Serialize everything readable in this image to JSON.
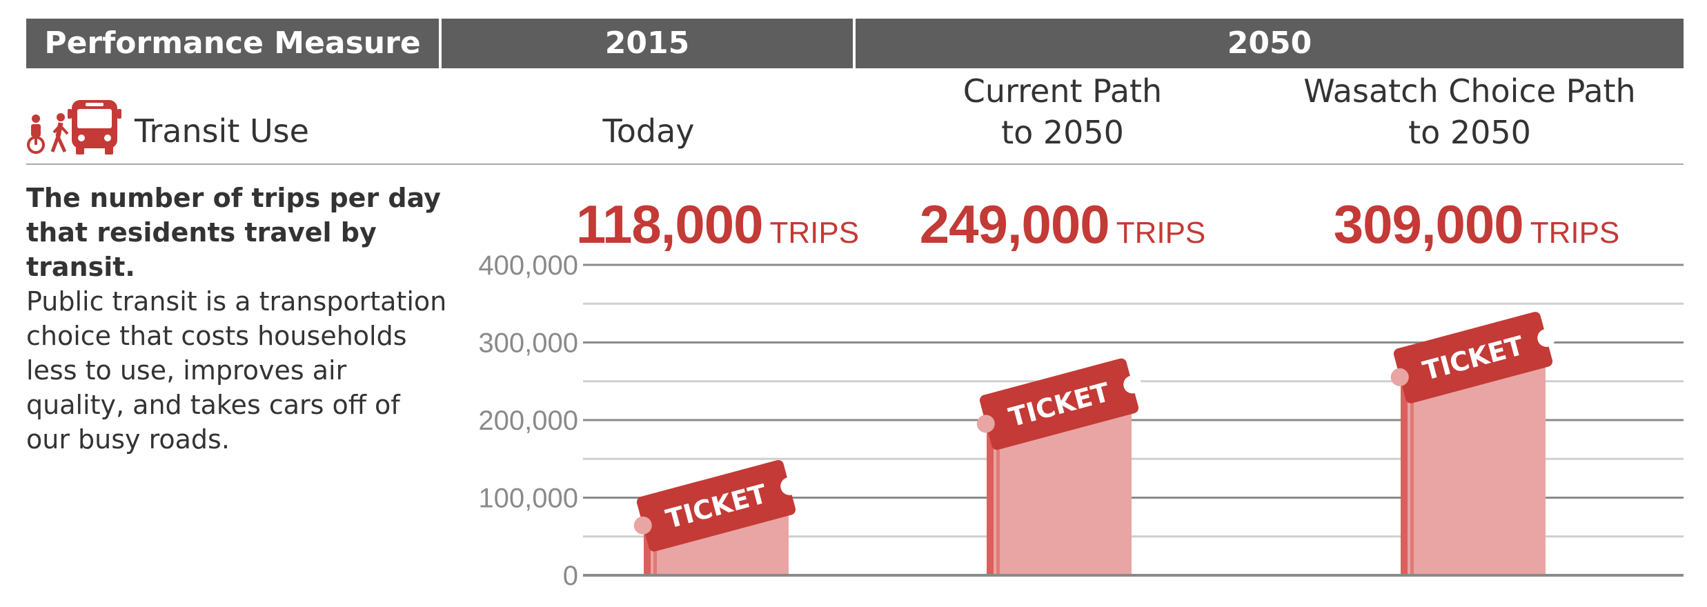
{
  "header": {
    "measure_label": "Performance Measure",
    "year_2015": "2015",
    "year_2050": "2050"
  },
  "subheader": {
    "measure_name": "Transit Use",
    "col_today": "Today",
    "col_current_line1": "Current Path",
    "col_current_line2": "to 2050",
    "col_wasatch_line1": "Wasatch Choice Path",
    "col_wasatch_line2": "to 2050"
  },
  "description": {
    "bold": "The number of trips per day that residents travel by transit.",
    "body": "Public transit is a transportation choice that costs households less to use, improves air quality, and takes cars off of our busy roads."
  },
  "highlights": [
    {
      "value": "118,000",
      "unit": "TRIPS"
    },
    {
      "value": "249,000",
      "unit": "TRIPS"
    },
    {
      "value": "309,000",
      "unit": "TRIPS"
    }
  ],
  "ticket_label": "TICKET",
  "colors": {
    "header_bg": "#5e5e5e",
    "accent_red": "#c33a36",
    "bar_pink": "#e8a5a3"
  },
  "icons": [
    "bicycle-icon",
    "pedestrian-icon",
    "bus-icon",
    "ticket-icon"
  ],
  "chart_data": {
    "type": "bar",
    "categories": [
      "Today",
      "Current Path to 2050",
      "Wasatch Choice Path to 2050"
    ],
    "values": [
      118000,
      249000,
      309000
    ],
    "ylim": [
      0,
      400000
    ],
    "yticks": [
      0,
      100000,
      200000,
      300000,
      400000
    ],
    "ytick_labels": [
      "0",
      "100,000",
      "200,000",
      "300,000",
      "400,000"
    ],
    "grid": true,
    "xlabel": "",
    "ylabel": ""
  }
}
